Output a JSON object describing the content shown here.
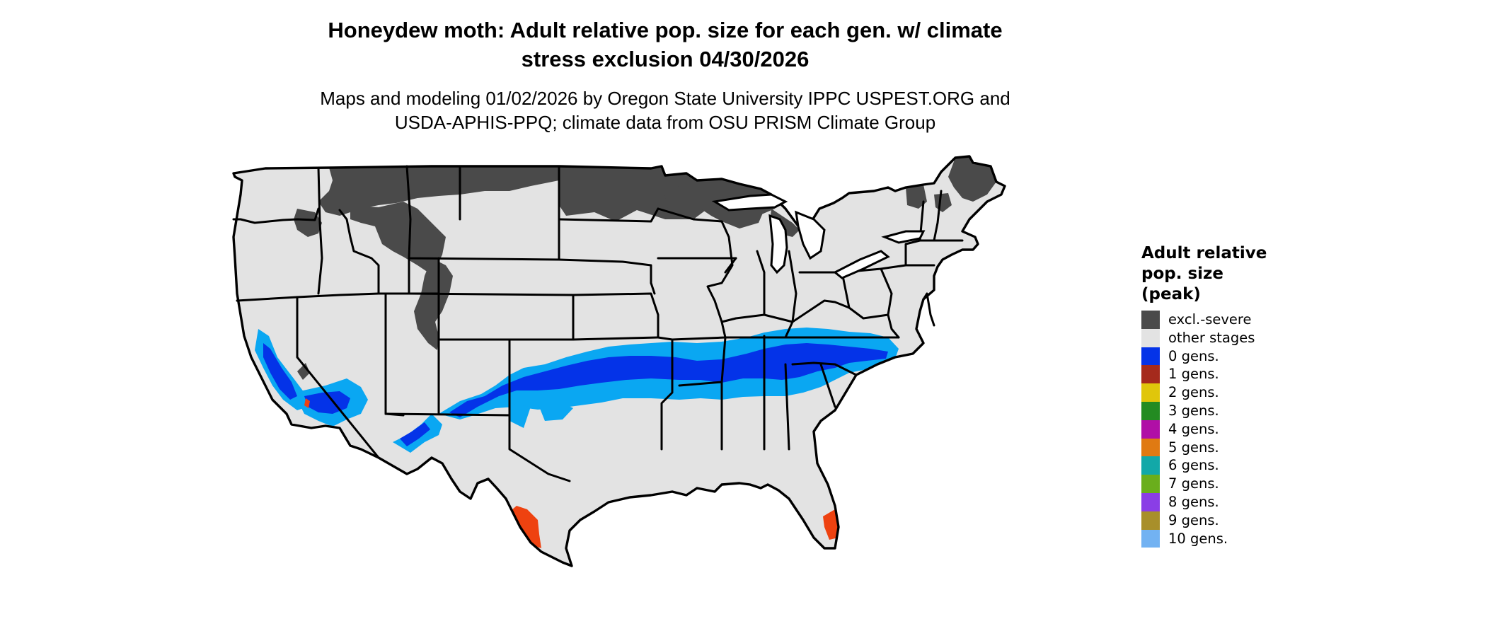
{
  "title": "Honeydew moth: Adult relative pop. size for each gen. w/ climate\nstress exclusion 04/30/2026",
  "subtitle": "Maps and modeling 01/02/2026 by Oregon State University IPPC USPEST.ORG and\nUSDA-APHIS-PPQ; climate data from OSU PRISM Climate Group",
  "legend": {
    "title": "Adult relative\npop. size\n(peak)",
    "items": [
      {
        "label": "excl.-severe",
        "color": "#4a4a4a"
      },
      {
        "label": "other stages",
        "color": "#e3e3e3"
      },
      {
        "label": "0 gens.",
        "color": "#0433e8"
      },
      {
        "label": "1 gens.",
        "color": "#a52a1c"
      },
      {
        "label": "2 gens.",
        "color": "#e0c60b"
      },
      {
        "label": "3 gens.",
        "color": "#238b22"
      },
      {
        "label": "4 gens.",
        "color": "#b00fa6"
      },
      {
        "label": "5 gens.",
        "color": "#e07a12"
      },
      {
        "label": "6 gens.",
        "color": "#12a8a8"
      },
      {
        "label": "7 gens.",
        "color": "#6aae1c"
      },
      {
        "label": "8 gens.",
        "color": "#8a3ee6"
      },
      {
        "label": "9 gens.",
        "color": "#a88f2a"
      },
      {
        "label": "10 gens.",
        "color": "#72b2f2"
      }
    ]
  },
  "map_colors": {
    "land": "#e3e3e3",
    "excluded": "#4a4a4a",
    "deep_blue": "#0433e8",
    "light_blue": "#0aa7f2",
    "orange_red": "#ee4210",
    "yellow": "#f2e51c",
    "border": "#000000"
  }
}
